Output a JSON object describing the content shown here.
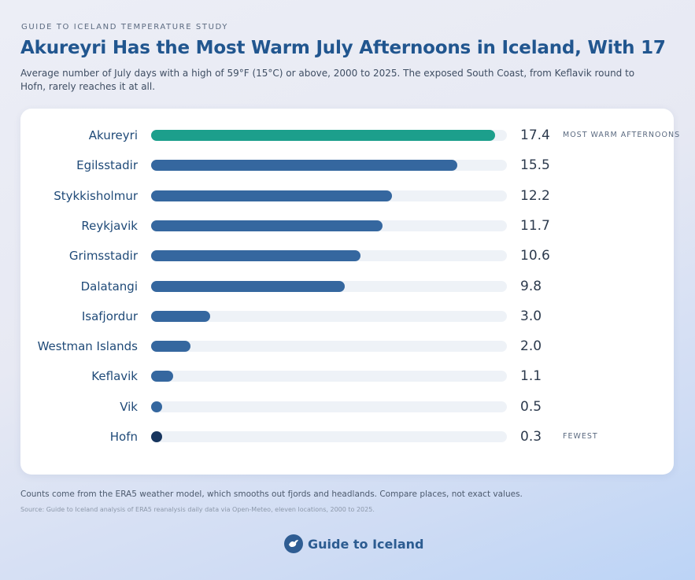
{
  "header": {
    "eyebrow": "GUIDE TO ICELAND TEMPERATURE STUDY",
    "title": "Akureyri Has the Most Warm July Afternoons in Iceland, With 17",
    "subtitle": "Average number of July days with a high of 59°F (15°C) or above, 2000 to 2025. The exposed South Coast, from Keflavik round to Hofn, rarely reaches it at all."
  },
  "chart_data": {
    "type": "bar",
    "orientation": "horizontal",
    "categories": [
      "Akureyri",
      "Egilsstadir",
      "Stykkisholmur",
      "Reykjavik",
      "Grimsstadir",
      "Dalatangi",
      "Isafjordur",
      "Westman Islands",
      "Keflavik",
      "Vik",
      "Hofn"
    ],
    "values": [
      17.4,
      15.5,
      12.2,
      11.7,
      10.6,
      9.8,
      3.0,
      2.0,
      1.1,
      0.5,
      0.3
    ],
    "value_labels": [
      "17.4",
      "15.5",
      "12.2",
      "11.7",
      "10.6",
      "9.8",
      "3.0",
      "2.0",
      "1.1",
      "0.5",
      "0.3"
    ],
    "xlim": [
      0,
      18
    ],
    "grid": false,
    "annotations": [
      {
        "category": "Akureyri",
        "text": "MOST WARM AFTERNOONS"
      },
      {
        "category": "Hofn",
        "text": "FEWEST"
      }
    ],
    "colors": {
      "highlight": "#1c9f8c",
      "default": "#35679f",
      "lowest": "#17355e",
      "track": "#eef2f7"
    }
  },
  "footer": {
    "note": "Counts come from the ERA5 weather model, which smooths out fjords and headlands. Compare places, not exact values.",
    "source": "Source: Guide to Iceland analysis of ERA5 reanalysis daily data via Open-Meteo, eleven locations, 2000 to 2025.",
    "brand": "Guide to Iceland",
    "brand_icon": "bird-icon"
  }
}
